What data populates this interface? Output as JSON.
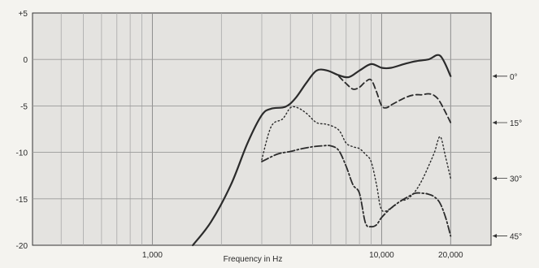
{
  "chart_data": {
    "type": "line",
    "title": "",
    "xlabel": "Frequency in Hz",
    "ylabel": "",
    "x_scale": "log",
    "xlim": [
      300,
      30000
    ],
    "ylim": [
      -20,
      5
    ],
    "x_ticks": [
      {
        "value": 1000,
        "label": "1,000"
      },
      {
        "value": 10000,
        "label": "10,000"
      },
      {
        "value": 20000,
        "label": "20,000"
      }
    ],
    "y_ticks": [
      {
        "value": 5,
        "label": "+5"
      },
      {
        "value": 0,
        "label": "0"
      },
      {
        "value": -5,
        "label": "-5"
      },
      {
        "value": -10,
        "label": "-10"
      },
      {
        "value": -15,
        "label": "-15"
      },
      {
        "value": -20,
        "label": "-20"
      }
    ],
    "grid": true,
    "series": [
      {
        "name": "0°",
        "style": "solid",
        "x": [
          1500,
          1800,
          2200,
          2600,
          3000,
          3300,
          3800,
          4200,
          4700,
          5200,
          5800,
          6500,
          7200,
          8000,
          9000,
          10000,
          11000,
          12500,
          14000,
          16000,
          18000,
          20000
        ],
        "y": [
          -20,
          -17.5,
          -13.5,
          -9,
          -6,
          -5.3,
          -5.1,
          -4.2,
          -2.5,
          -1.2,
          -1.2,
          -1.7,
          -1.9,
          -1.2,
          -0.5,
          -0.9,
          -0.9,
          -0.5,
          -0.2,
          0,
          0.4,
          -1.8
        ]
      },
      {
        "name": "15°",
        "style": "dashed",
        "x": [
          6500,
          7000,
          7500,
          8000,
          8500,
          9000,
          9500,
          10000,
          10500,
          11000,
          12000,
          13000,
          14000,
          15000,
          16000,
          17000,
          18000,
          20000
        ],
        "y": [
          -1.8,
          -2.6,
          -3.2,
          -3.0,
          -2.4,
          -2.2,
          -3.5,
          -5.0,
          -5.2,
          -4.9,
          -4.4,
          -4.0,
          -3.8,
          -3.8,
          -3.7,
          -3.9,
          -4.6,
          -6.8
        ]
      },
      {
        "name": "30°",
        "style": "dotted",
        "x": [
          3000,
          3300,
          3700,
          4000,
          4300,
          4700,
          5200,
          5800,
          6500,
          7000,
          7500,
          8000,
          8500,
          9000,
          9500,
          10000,
          11000,
          12000,
          13000,
          14000,
          15000,
          16000,
          17000,
          18000,
          19000,
          20000
        ],
        "y": [
          -10.8,
          -7.2,
          -6.4,
          -5.2,
          -5.2,
          -5.8,
          -6.8,
          -7.0,
          -7.6,
          -9.0,
          -9.4,
          -9.6,
          -10.2,
          -11.0,
          -13.5,
          -16.2,
          -16.0,
          -15.3,
          -15.0,
          -14.2,
          -13.0,
          -11.5,
          -10.0,
          -8.3,
          -10.5,
          -12.8
        ]
      },
      {
        "name": "45°",
        "style": "dash-dot",
        "x": [
          3000,
          3500,
          4000,
          4500,
          5000,
          5500,
          6000,
          6500,
          7000,
          7500,
          8000,
          8500,
          9000,
          9500,
          10000,
          11000,
          12000,
          13000,
          14000,
          15000,
          16000,
          17000,
          18000,
          19000,
          20000
        ],
        "y": [
          -11,
          -10.2,
          -9.9,
          -9.6,
          -9.4,
          -9.3,
          -9.3,
          -9.8,
          -11.5,
          -13.5,
          -14.4,
          -17.6,
          -18.0,
          -17.8,
          -17.0,
          -16.0,
          -15.3,
          -14.8,
          -14.4,
          -14.4,
          -14.5,
          -14.8,
          -15.5,
          -17.0,
          -19.0
        ]
      }
    ]
  }
}
